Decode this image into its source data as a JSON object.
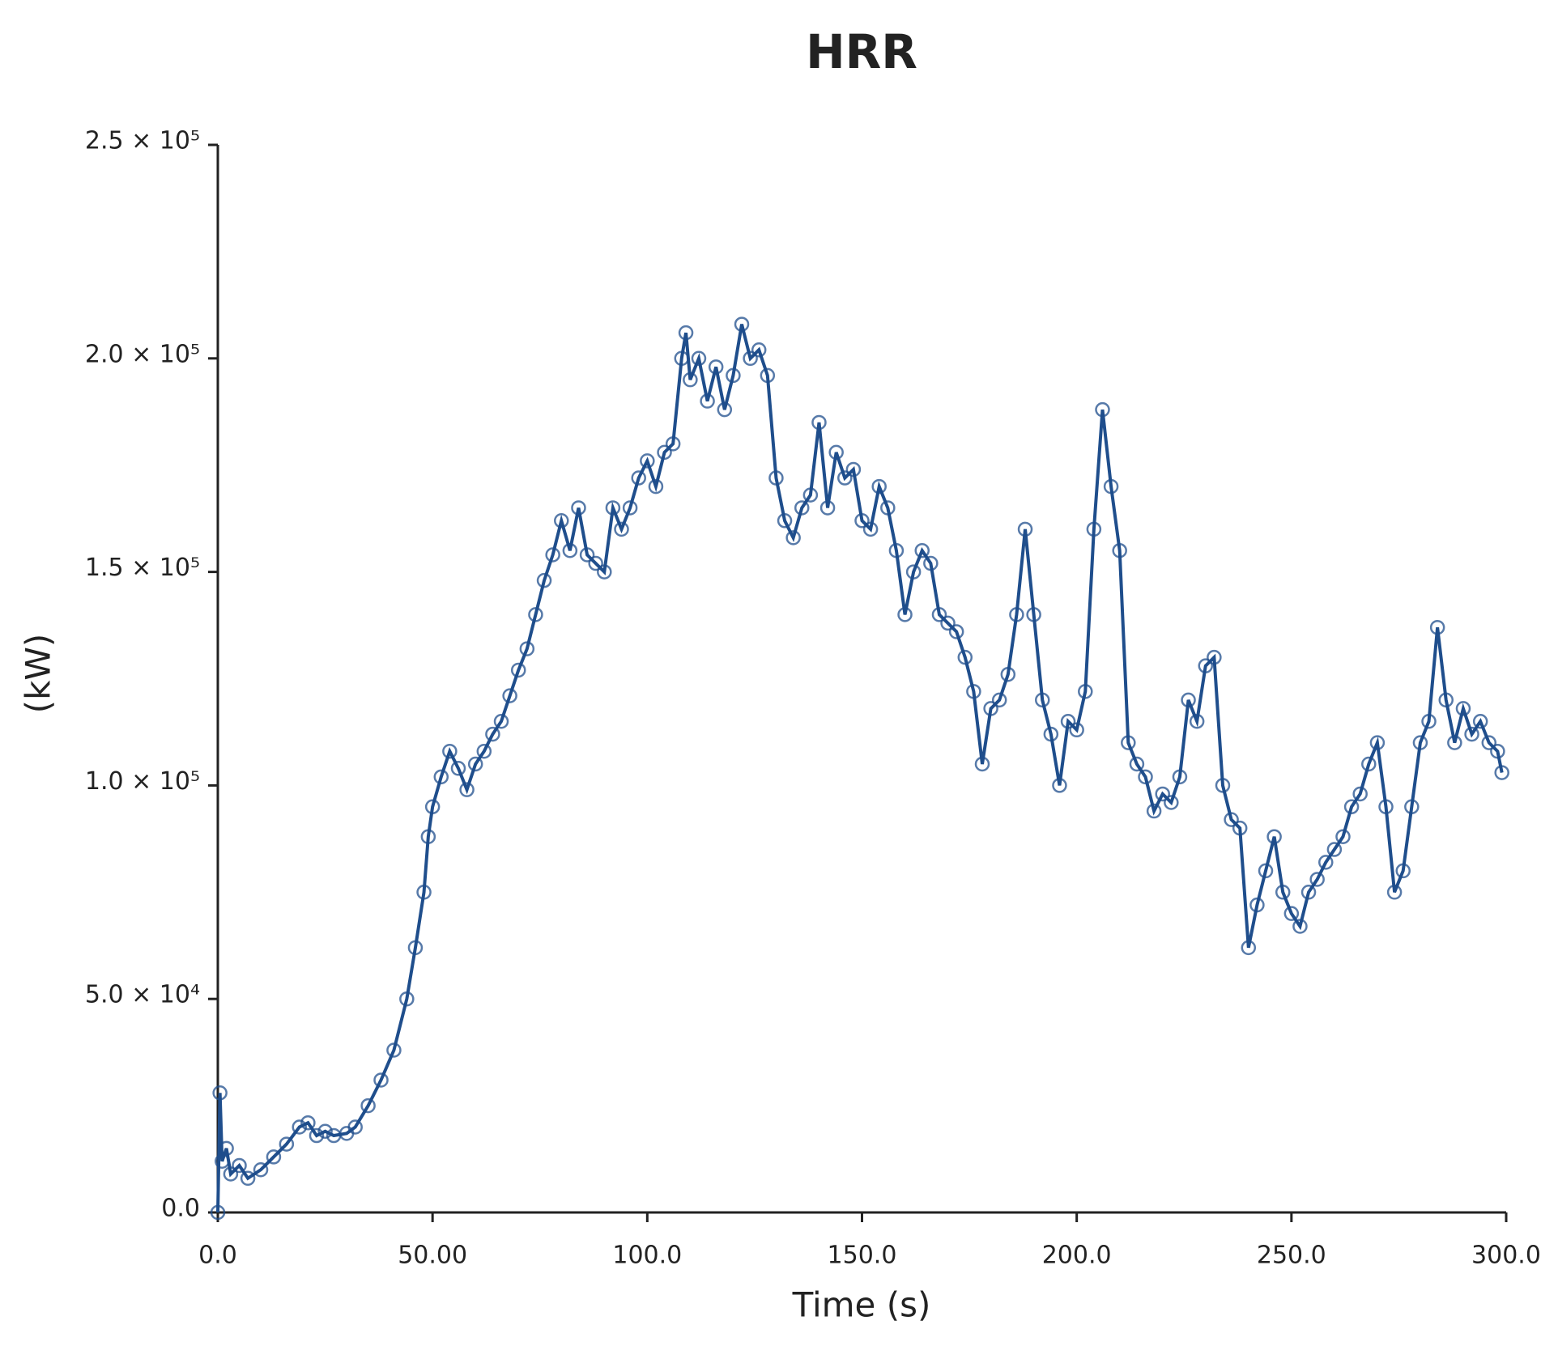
{
  "chart_data": {
    "type": "line",
    "title": "HRR",
    "xlabel": "Time (s)",
    "ylabel": "(kW)",
    "x": [
      0,
      0.5,
      1,
      2,
      3,
      5,
      7,
      10,
      13,
      16,
      19,
      21,
      23,
      25,
      27,
      30,
      32,
      35,
      38,
      41,
      44,
      46,
      48,
      49,
      50,
      52,
      54,
      56,
      58,
      60,
      62,
      64,
      66,
      68,
      70,
      72,
      74,
      76,
      78,
      80,
      82,
      84,
      86,
      88,
      90,
      92,
      94,
      96,
      98,
      100,
      102,
      104,
      106,
      108,
      109,
      110,
      112,
      114,
      116,
      118,
      120,
      122,
      124,
      126,
      128,
      130,
      132,
      134,
      136,
      138,
      140,
      142,
      144,
      146,
      148,
      150,
      152,
      154,
      156,
      158,
      160,
      162,
      164,
      166,
      168,
      170,
      172,
      174,
      176,
      178,
      180,
      182,
      184,
      186,
      188,
      190,
      192,
      194,
      196,
      198,
      200,
      202,
      204,
      206,
      208,
      210,
      212,
      214,
      216,
      218,
      220,
      222,
      224,
      226,
      228,
      230,
      232,
      234,
      236,
      238,
      240,
      242,
      244,
      246,
      248,
      250,
      252,
      254,
      256,
      258,
      260,
      262,
      264,
      266,
      268,
      270,
      272,
      274,
      276,
      278,
      280,
      282,
      284,
      286,
      288,
      290,
      292,
      294,
      296,
      298,
      299
    ],
    "series": [
      {
        "name": "HRR",
        "color": "#1f4e8c",
        "values": [
          0,
          28000,
          12000,
          15000,
          9000,
          11000,
          8000,
          10000,
          13000,
          16000,
          20000,
          21000,
          18000,
          19000,
          18000,
          18500,
          20000,
          25000,
          31000,
          38000,
          50000,
          62000,
          75000,
          88000,
          95000,
          102000,
          108000,
          104000,
          99000,
          105000,
          108000,
          112000,
          115000,
          121000,
          127000,
          132000,
          140000,
          148000,
          154000,
          162000,
          155000,
          165000,
          154000,
          152000,
          150000,
          165000,
          160000,
          165000,
          172000,
          176000,
          170000,
          178000,
          180000,
          200000,
          206000,
          195000,
          200000,
          190000,
          198000,
          188000,
          196000,
          208000,
          200000,
          202000,
          196000,
          172000,
          162000,
          158000,
          165000,
          168000,
          185000,
          165000,
          178000,
          172000,
          174000,
          162000,
          160000,
          170000,
          165000,
          155000,
          140000,
          150000,
          155000,
          152000,
          140000,
          138000,
          136000,
          130000,
          122000,
          105000,
          118000,
          120000,
          126000,
          140000,
          160000,
          140000,
          120000,
          112000,
          100000,
          115000,
          113000,
          122000,
          160000,
          188000,
          170000,
          155000,
          110000,
          105000,
          102000,
          94000,
          98000,
          96000,
          102000,
          120000,
          115000,
          128000,
          130000,
          100000,
          92000,
          90000,
          62000,
          72000,
          80000,
          88000,
          75000,
          70000,
          67000,
          75000,
          78000,
          82000,
          85000,
          88000,
          95000,
          98000,
          105000,
          110000,
          95000,
          75000,
          80000,
          95000,
          110000,
          115000,
          137000,
          120000,
          110000,
          118000,
          112000,
          115000,
          110000,
          108000,
          103000
        ]
      }
    ],
    "xlim": [
      0,
      300
    ],
    "xticks": [
      {
        "value": 0,
        "label": "0.0"
      },
      {
        "value": 50,
        "label": "50.00"
      },
      {
        "value": 100,
        "label": "100.0"
      },
      {
        "value": 150,
        "label": "150.0"
      },
      {
        "value": 200,
        "label": "200.0"
      },
      {
        "value": 250,
        "label": "250.0"
      },
      {
        "value": 300,
        "label": "300.0"
      }
    ],
    "ylim": [
      0,
      250000
    ],
    "yticks": [
      {
        "value": 0,
        "label": "0.0"
      },
      {
        "value": 50000,
        "label": "5.0 × 10⁴"
      },
      {
        "value": 100000,
        "label": "1.0 × 10⁵"
      },
      {
        "value": 150000,
        "label": "1.5 × 10⁵"
      },
      {
        "value": 200000,
        "label": "2.0 × 10⁵"
      },
      {
        "value": 250000,
        "label": "2.5 × 10⁵"
      }
    ]
  }
}
